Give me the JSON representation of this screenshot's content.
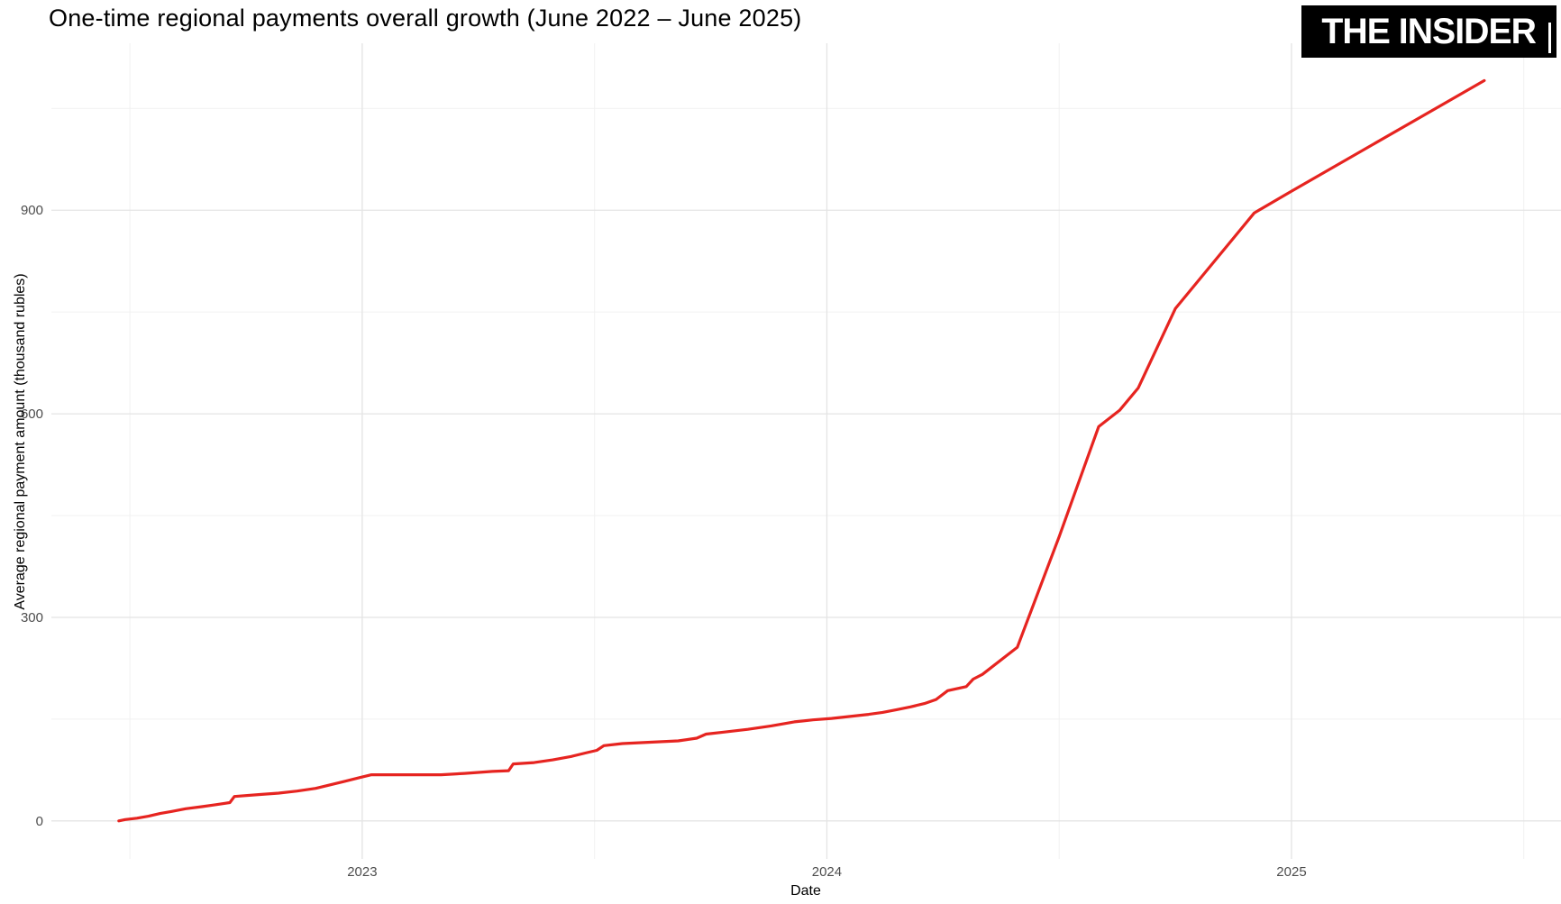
{
  "header": {
    "title": "One-time regional payments overall growth (June 2022 – June 2025)",
    "logo_text": "THE INSIDER"
  },
  "colors": {
    "line": "#e62420",
    "grid_major": "#e4e4e4",
    "grid_minor": "#f1f1f1",
    "tick_text": "#4d4d4d",
    "axis_title_text": "#000000",
    "logo_bg": "#000000",
    "logo_fg": "#ffffff",
    "background": "#ffffff"
  },
  "chart_data": {
    "type": "line",
    "title": "One-time regional payments overall growth (June 2022 – June 2025)",
    "xlabel": "Date",
    "ylabel": "Average regional payment amount (thousand rubles)",
    "legend_position": "none",
    "grid": true,
    "xlim": [
      2022.331,
      2025.58
    ],
    "ylim": [
      -56,
      1146
    ],
    "x_ticks": [
      {
        "value": 2023,
        "label": "2023"
      },
      {
        "value": 2024,
        "label": "2024"
      },
      {
        "value": 2025,
        "label": "2025"
      }
    ],
    "x_minor_ticks": [
      2022.5,
      2023.5,
      2024.5,
      2025.5
    ],
    "y_ticks": [
      {
        "value": 0,
        "label": "0"
      },
      {
        "value": 300,
        "label": "300"
      },
      {
        "value": 600,
        "label": "600"
      },
      {
        "value": 900,
        "label": "900"
      }
    ],
    "y_minor_ticks": [
      150,
      450,
      750,
      1050
    ],
    "series": [
      {
        "name": "Average regional payment amount (thousand rubles)",
        "color": "#e62420",
        "stroke_width": 3.2,
        "x": [
          2022.476,
          2022.49,
          2022.515,
          2022.54,
          2022.565,
          2022.59,
          2022.62,
          2022.655,
          2022.685,
          2022.715,
          2022.725,
          2022.78,
          2022.82,
          2022.86,
          2022.9,
          2022.93,
          2022.96,
          2022.995,
          2023.02,
          2023.17,
          2023.22,
          2023.28,
          2023.315,
          2023.325,
          2023.37,
          2023.41,
          2023.45,
          2023.48,
          2023.505,
          2023.52,
          2023.56,
          2023.62,
          2023.68,
          2023.72,
          2023.74,
          2023.78,
          2023.83,
          2023.88,
          2023.93,
          2023.97,
          2024.01,
          2024.05,
          2024.09,
          2024.12,
          2024.15,
          2024.18,
          2024.21,
          2024.235,
          2024.26,
          2024.3,
          2024.315,
          2024.335,
          2024.41,
          2024.5,
          2024.585,
          2024.63,
          2024.67,
          2024.75,
          2024.92,
          2025.0,
          2025.415
        ],
        "y": [
          0,
          2,
          4,
          7,
          11,
          14,
          18,
          21,
          24,
          27,
          36,
          39,
          41,
          44,
          48,
          53,
          58,
          64,
          68,
          68,
          70,
          73,
          74,
          84,
          86,
          90,
          95,
          100,
          104,
          111,
          114,
          116,
          118,
          122,
          128,
          131,
          135,
          140,
          146,
          149,
          151,
          154,
          157,
          160,
          164,
          168,
          173,
          179,
          192,
          198,
          209,
          216,
          256,
          419,
          581,
          605,
          638,
          755,
          896,
          928,
          1091
        ]
      }
    ]
  }
}
